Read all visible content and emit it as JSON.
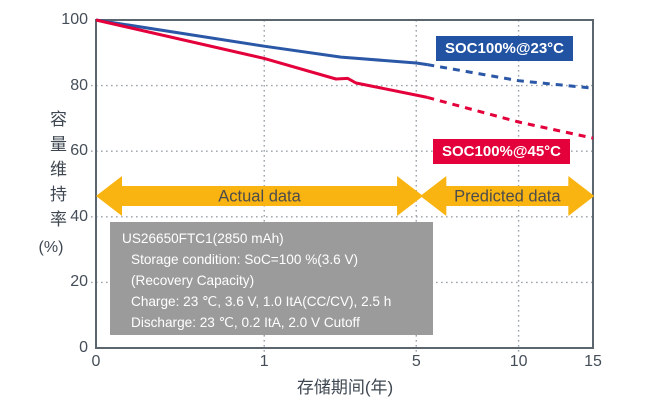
{
  "chart_data": {
    "type": "line",
    "xlabel": "存储期间(年)",
    "ylabel_vertical": "容量维持率",
    "ylabel_unit": "(%)",
    "x_ticks": [
      0,
      1,
      5,
      10,
      15
    ],
    "y_ticks": [
      0,
      20,
      40,
      60,
      80,
      100
    ],
    "xlim": [
      0,
      15
    ],
    "ylim": [
      0,
      100
    ],
    "x_scale_power": 0.4,
    "grid": "dotted",
    "axis_color": "#5c666f",
    "grid_color": "#9aa2ab",
    "tick_color": "#454e58",
    "series": [
      {
        "name": "SOC100%@23°C",
        "color": "#2b57a7",
        "tag_bg": "#2253a3",
        "solid_points": [
          [
            0,
            100
          ],
          [
            1,
            92
          ],
          [
            2.56,
            88.7
          ],
          [
            5,
            86.9
          ],
          [
            5.44,
            86.4
          ]
        ],
        "predicted_points": [
          [
            5.44,
            86.4
          ],
          [
            10,
            81.5
          ],
          [
            15,
            79.2
          ]
        ]
      },
      {
        "name": "SOC100%@45°C",
        "color": "#e4003a",
        "tag_bg": "#e4003a",
        "solid_points": [
          [
            0,
            100
          ],
          [
            1,
            88.3
          ],
          [
            2.43,
            82.0
          ],
          [
            2.74,
            82.2
          ],
          [
            2.97,
            80.8
          ],
          [
            5,
            77.1
          ],
          [
            5.44,
            76.4
          ]
        ],
        "predicted_points": [
          [
            5.44,
            76.4
          ],
          [
            10,
            68.9
          ],
          [
            15,
            64
          ]
        ]
      }
    ],
    "arrows": [
      {
        "label": "Actual data",
        "from": 0,
        "to": 5.27,
        "color": "#f9b412"
      },
      {
        "label": "Predicted data",
        "from": 5.16,
        "to": 15.1,
        "color": "#f9b412"
      }
    ]
  },
  "info_box": {
    "bg": "#9b9b9b",
    "lines": [
      "US26650FTC1(2850 mAh)",
      "Storage condition: SoC=100 %(3.6 V)",
      "(Recovery Capacity)",
      "Charge: 23 ℃, 3.6 V, 1.0 ItA(CC/CV), 2.5 h",
      "Discharge: 23 ℃, 0.2 ItA, 2.0 V Cutoff"
    ]
  }
}
